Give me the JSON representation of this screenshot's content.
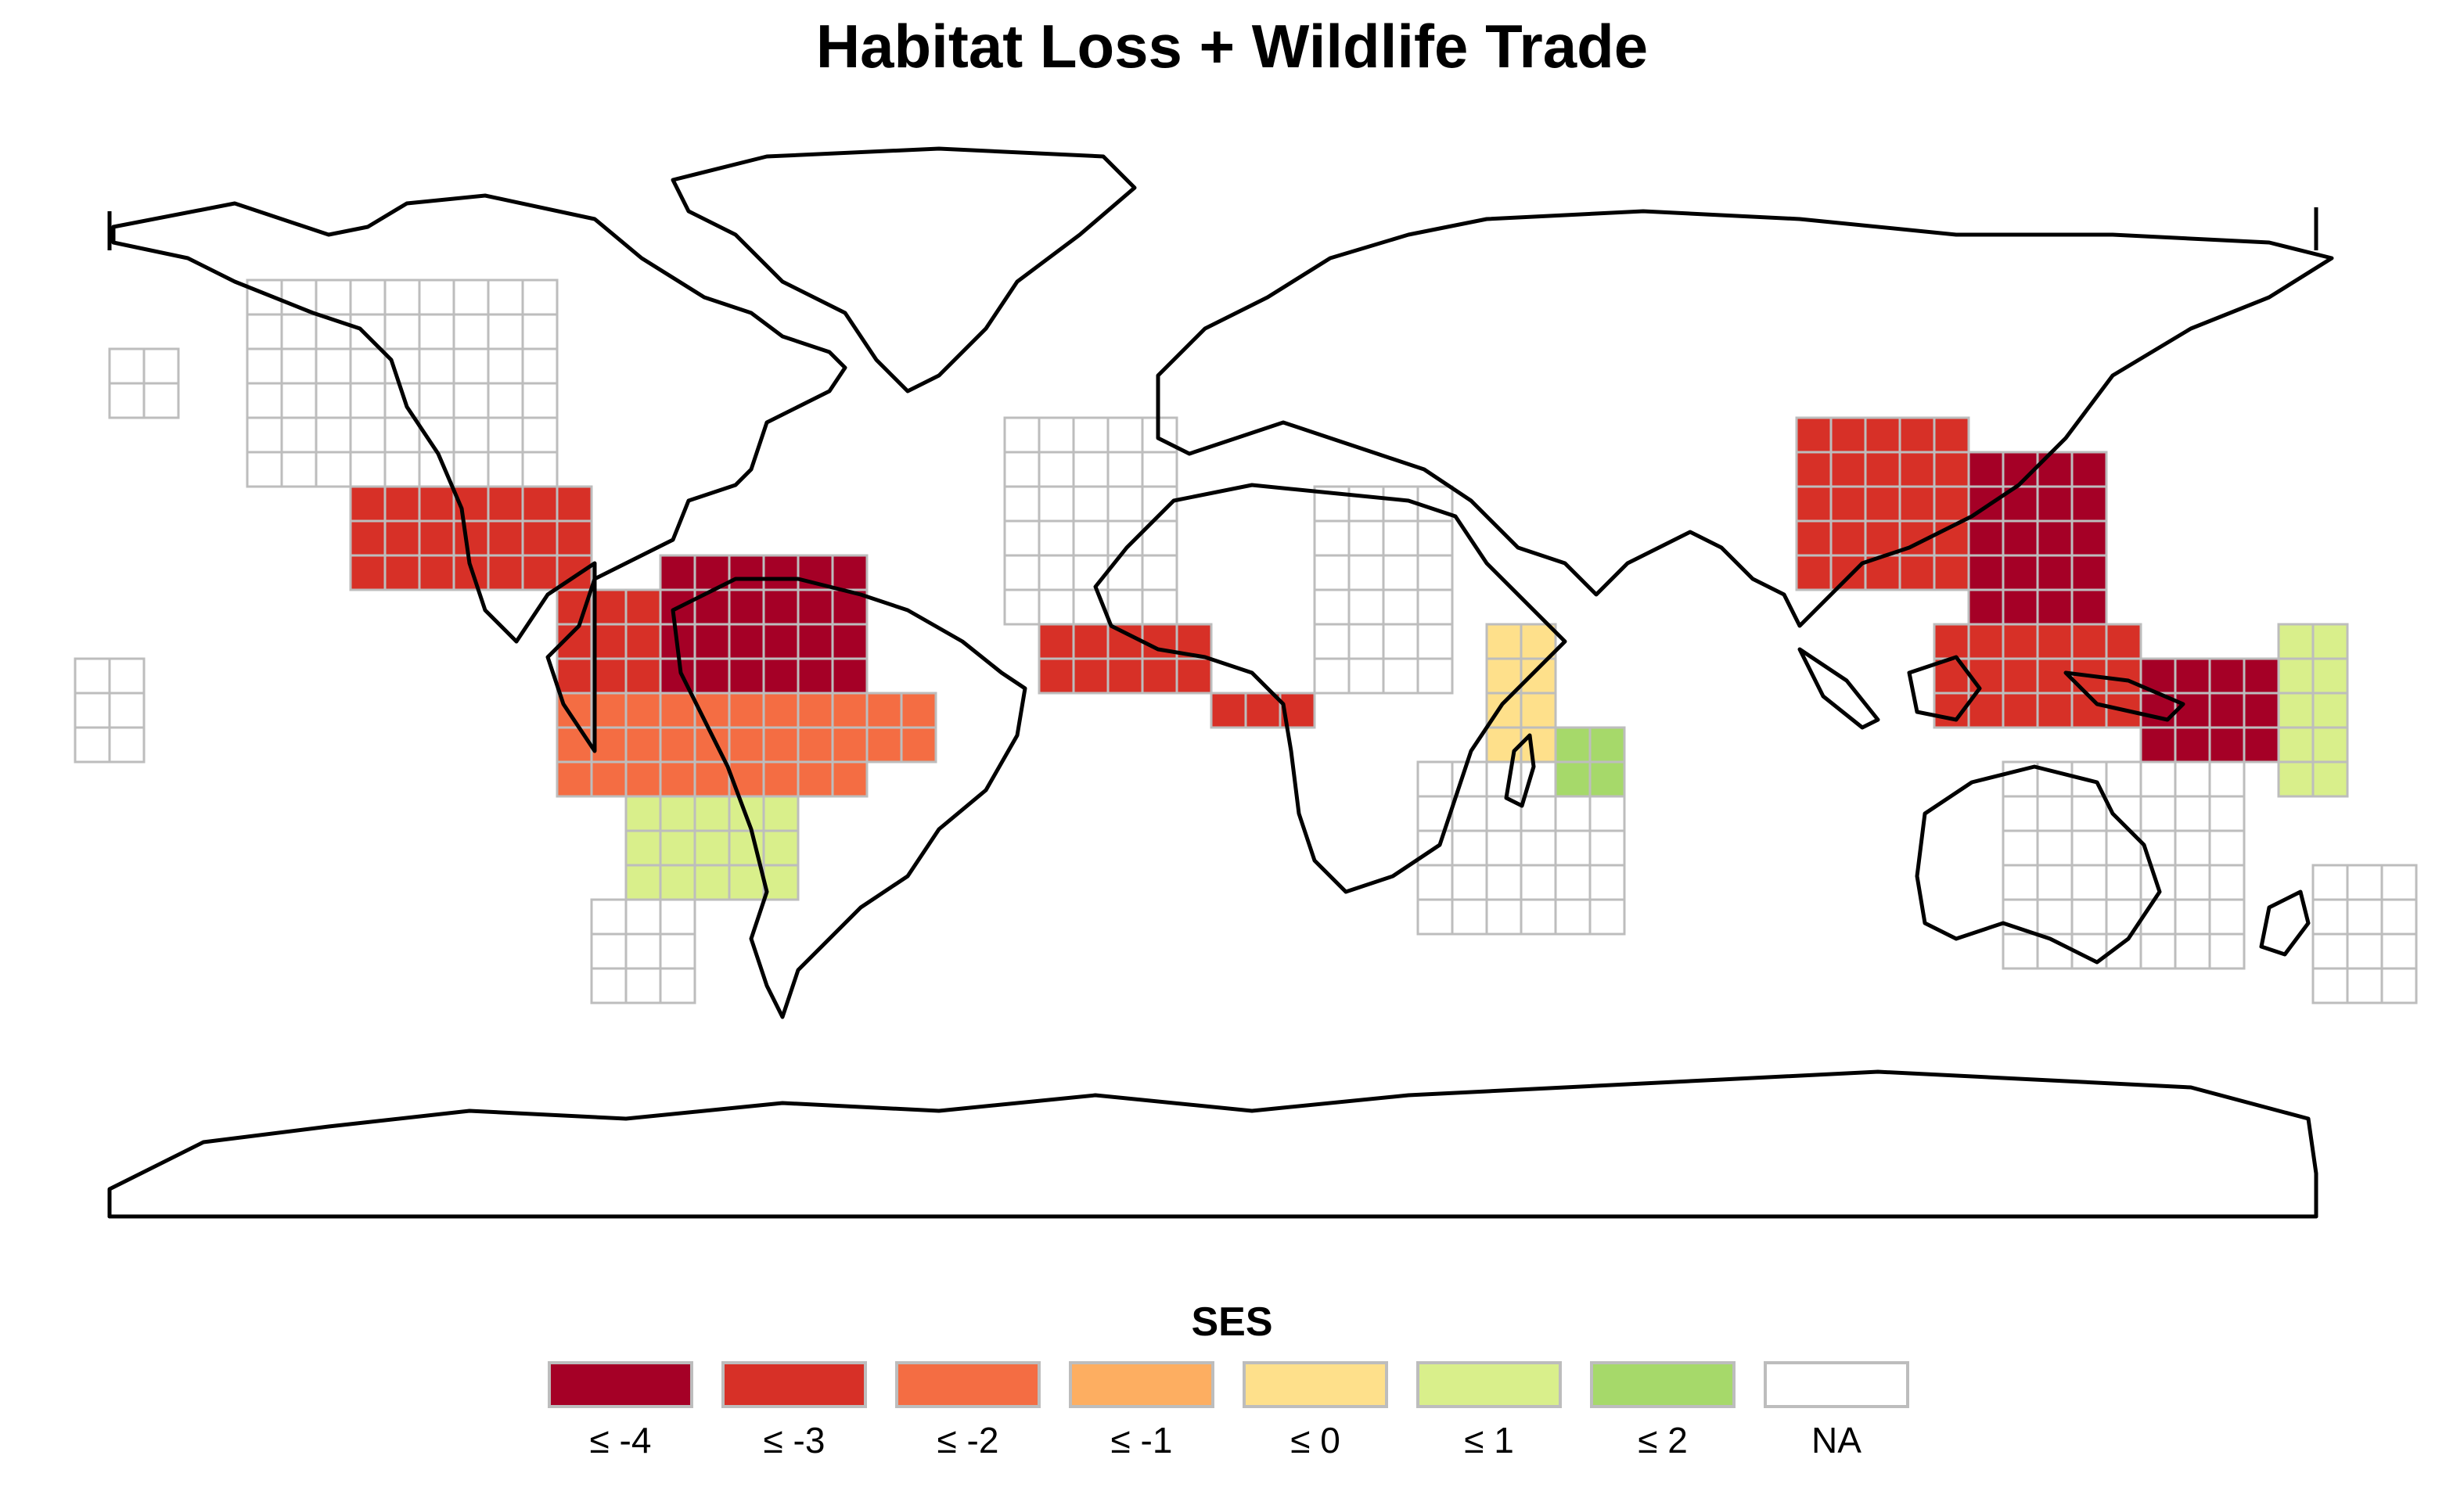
{
  "title": "Habitat Loss + Wildlife Trade",
  "legend": {
    "title": "SES",
    "items": [
      {
        "label": "≤ -4",
        "color": "#a50026"
      },
      {
        "label": "≤ -3",
        "color": "#d73027"
      },
      {
        "label": "≤ -2",
        "color": "#f46d43"
      },
      {
        "label": "≤ -1",
        "color": "#fdae61"
      },
      {
        "label": "≤ 0",
        "color": "#fee08b"
      },
      {
        "label": "≤ 1",
        "color": "#d9ef8b"
      },
      {
        "label": "≤ 2",
        "color": "#a6d96a"
      },
      {
        "label": "NA",
        "color": "#ffffff"
      }
    ]
  },
  "map": {
    "projection": "equirectangular",
    "grid_cell_outline_color": "#bdbdbd",
    "land_outline_color": "#000000",
    "regions": [
      {
        "name": "mexico-central-america",
        "ses": "≤ -3"
      },
      {
        "name": "northern-south-america",
        "ses": "≤ -4"
      },
      {
        "name": "amazon-brazil",
        "ses": "≤ -2"
      },
      {
        "name": "southern-brazil",
        "ses": "≤ 1"
      },
      {
        "name": "west-africa",
        "ses": "≤ -3"
      },
      {
        "name": "east-africa",
        "ses": "≤ 0"
      },
      {
        "name": "madagascar",
        "ses": "≤ 2"
      },
      {
        "name": "india-himalaya",
        "ses": "≤ -3"
      },
      {
        "name": "indochina",
        "ses": "≤ -4"
      },
      {
        "name": "indonesia",
        "ses": "≤ -3"
      },
      {
        "name": "new-guinea",
        "ses": "≤ -4"
      },
      {
        "name": "pacific-islands",
        "ses": "≤ 1"
      }
    ]
  }
}
